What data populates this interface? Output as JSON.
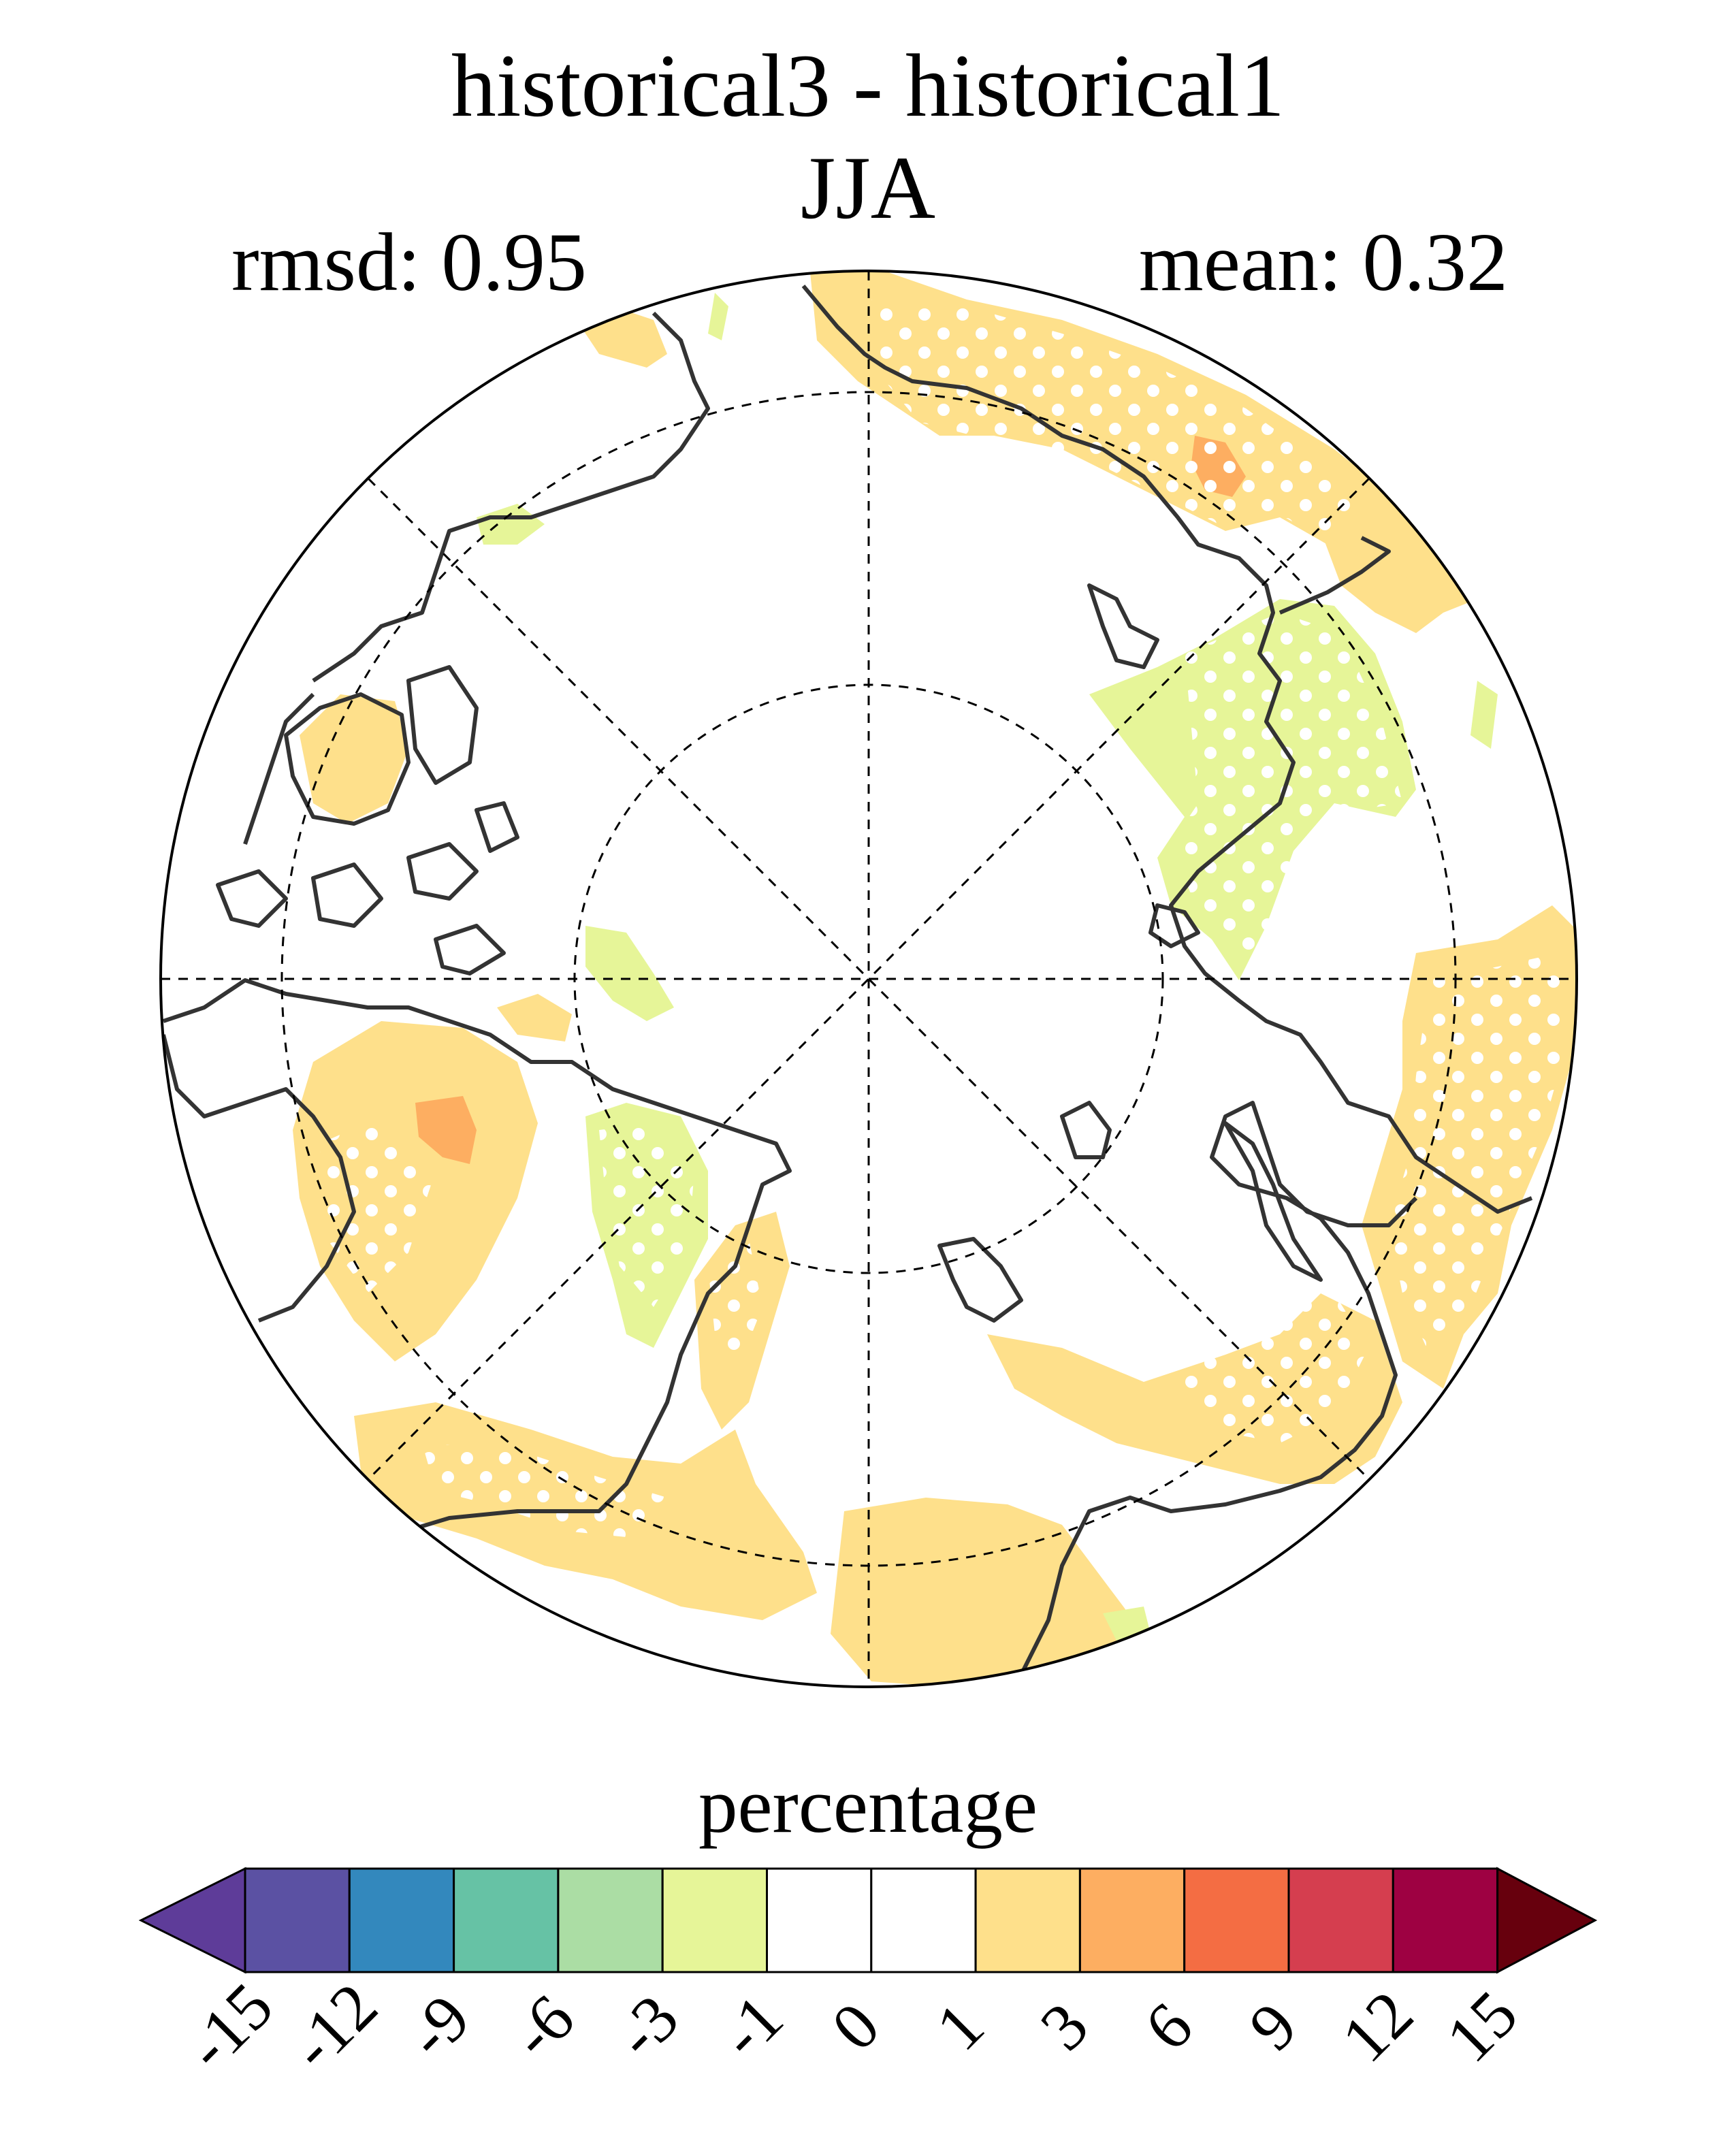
{
  "title": "historical3 - historical1",
  "season": "JJA",
  "stats": {
    "rmsd": "rmsd: 0.95",
    "mean": "mean: 0.32"
  },
  "colorbar": {
    "label": "percentage",
    "ticks": [
      "-15",
      "-12",
      "-9",
      "-6",
      "-3",
      "-1",
      "0",
      "1",
      "3",
      "6",
      "9",
      "12",
      "15"
    ],
    "colors": [
      "#5e3c99",
      "#5b51a3",
      "#3388bd",
      "#66c2a5",
      "#abdda4",
      "#e6f598",
      "#ffffff",
      "#ffffff",
      "#fee08b",
      "#fdae61",
      "#f46d43",
      "#d53e4f",
      "#9e0142",
      "#67000d"
    ]
  },
  "map": {
    "projection": "north-polar-stereographic",
    "colors": {
      "land_outline": "#333333",
      "positive_1_3": "#fee08b",
      "positive_3_6": "#fdae61",
      "negative_1_3": "#e6f598",
      "stipple": "#ffffff"
    }
  }
}
